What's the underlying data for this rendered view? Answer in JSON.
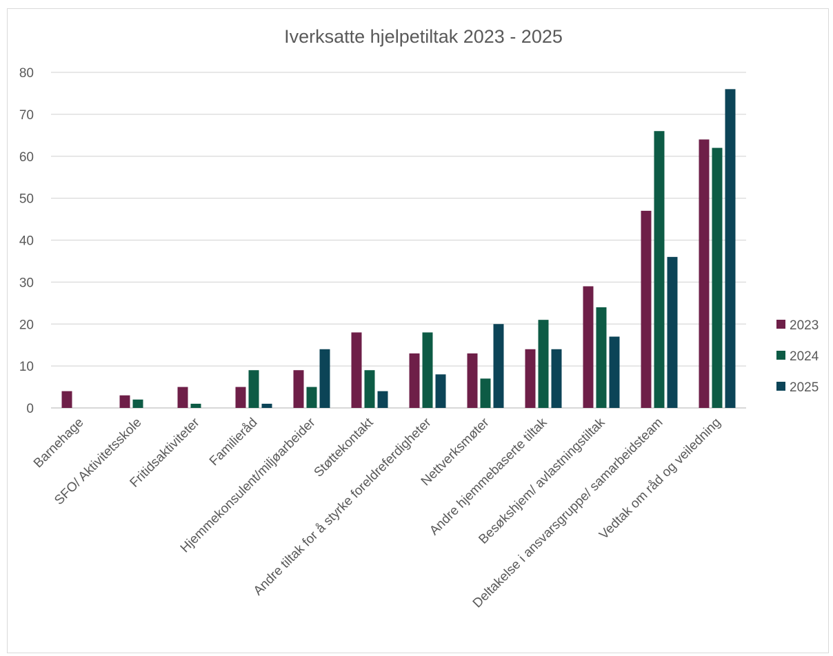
{
  "chart_data": {
    "type": "bar",
    "title": "Iverksatte hjelpetiltak 2023 - 2025",
    "xlabel": "",
    "ylabel": "",
    "ylim": [
      0,
      80
    ],
    "yticks": [
      0,
      10,
      20,
      30,
      40,
      50,
      60,
      70,
      80
    ],
    "grid": true,
    "legend_position": "right",
    "categories": [
      "Barnehage",
      "SFO/ Aktivitetsskole",
      "Fritidsaktiviteter",
      "Familieråd",
      "Hjemmekonsulent/miljøarbeider",
      "Støttekontakt",
      "Andre tiltak for å styrke foreldreferdigheter",
      "Nettverksmøter",
      "Andre hjemmebaserte tiltak",
      "Besøkshjem/ avlastningstiltak",
      "Deltakelse i ansvarsgruppe/ samarbeidsteam",
      "Vedtak om råd og veiledning"
    ],
    "series": [
      {
        "name": "2023",
        "color": "#6e1f48",
        "values": [
          4,
          3,
          5,
          5,
          9,
          18,
          13,
          13,
          14,
          29,
          47,
          64
        ]
      },
      {
        "name": "2024",
        "color": "#0d5b45",
        "values": [
          0,
          2,
          1,
          9,
          5,
          9,
          18,
          7,
          21,
          24,
          66,
          62
        ]
      },
      {
        "name": "2025",
        "color": "#0c4457",
        "values": [
          0,
          0,
          0,
          1,
          14,
          4,
          8,
          20,
          14,
          17,
          36,
          76
        ]
      }
    ]
  }
}
